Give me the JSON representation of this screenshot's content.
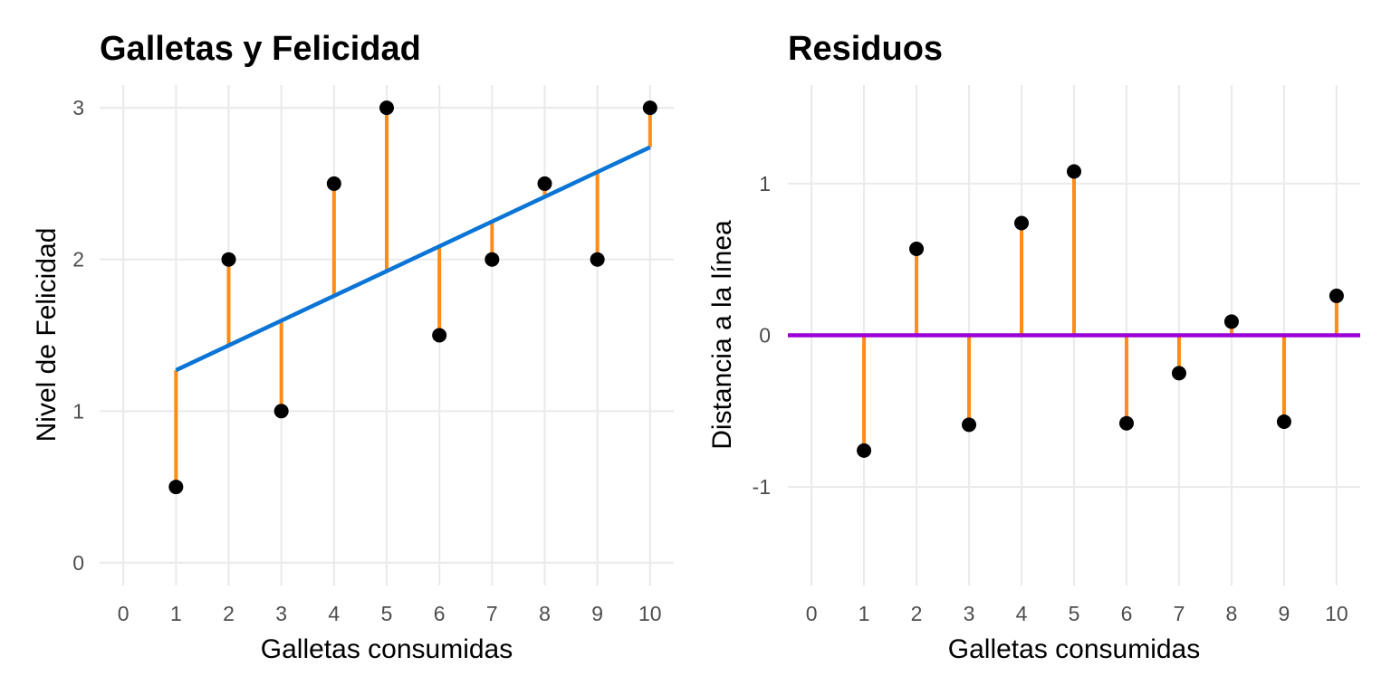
{
  "chart_data": [
    {
      "type": "scatter",
      "title": "Galletas y Felicidad",
      "xlabel": "Galletas consumidas",
      "ylabel": "Nivel de Felicidad",
      "xlim": [
        -0.45,
        10.45
      ],
      "ylim": [
        -0.15,
        3.15
      ],
      "xticks": [
        0,
        1,
        2,
        3,
        4,
        5,
        6,
        7,
        8,
        9,
        10
      ],
      "yticks": [
        0,
        1,
        2,
        3
      ],
      "grid": true,
      "x": [
        1,
        2,
        3,
        4,
        5,
        6,
        7,
        8,
        9,
        10
      ],
      "y": [
        0.5,
        2,
        1,
        2.5,
        3,
        1.5,
        2,
        2.5,
        2,
        3
      ],
      "fitted": [
        1.27,
        1.43,
        1.6,
        1.76,
        1.92,
        2.08,
        2.25,
        2.41,
        2.57,
        2.74
      ],
      "colors": {
        "points": "#000000",
        "fit_line": "#0a75d6",
        "segments": "#ff8c1a"
      }
    },
    {
      "type": "scatter",
      "title": "Residuos",
      "xlabel": "Galletas consumidas",
      "ylabel": "Distancia a la línea",
      "xlim": [
        -0.45,
        10.45
      ],
      "ylim": [
        -1.65,
        1.65
      ],
      "xticks": [
        0,
        1,
        2,
        3,
        4,
        5,
        6,
        7,
        8,
        9,
        10
      ],
      "yticks": [
        -1,
        0,
        1
      ],
      "grid": true,
      "x": [
        1,
        2,
        3,
        4,
        5,
        6,
        7,
        8,
        9,
        10
      ],
      "y": [
        -0.76,
        0.57,
        -0.59,
        0.74,
        1.08,
        -0.58,
        -0.25,
        0.09,
        -0.57,
        0.26
      ],
      "zero_line": 0,
      "colors": {
        "points": "#000000",
        "zero_line": "#9c00d6",
        "segments": "#ff8c1a"
      }
    }
  ]
}
